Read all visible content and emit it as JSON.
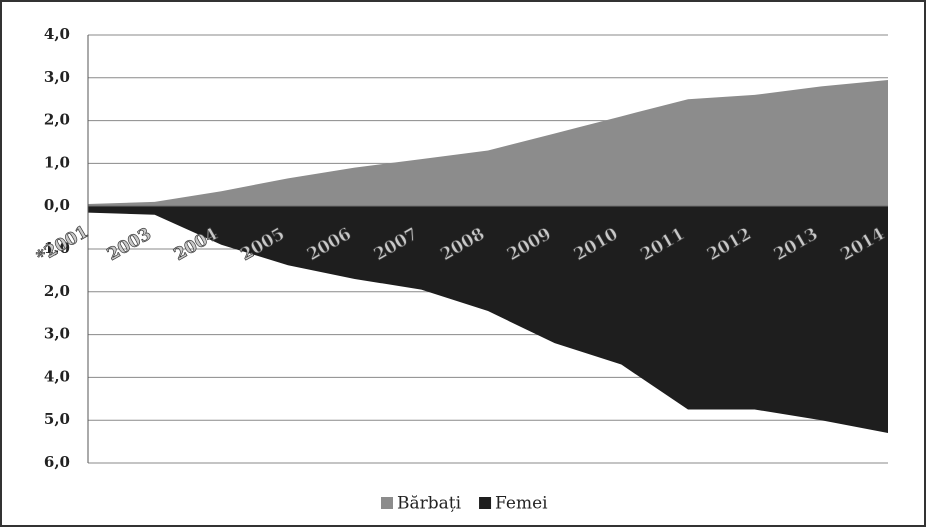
{
  "chart_data": {
    "type": "area",
    "categories": [
      "*2001",
      "2003",
      "2004",
      "2005",
      "2006",
      "2007",
      "2008",
      "2009",
      "2010",
      "2011",
      "2012",
      "2013",
      "2014"
    ],
    "series": [
      {
        "name": "Bărbați",
        "color": "#8c8c8c",
        "values": [
          0.05,
          0.1,
          0.35,
          0.65,
          0.9,
          1.1,
          1.3,
          1.7,
          2.1,
          2.5,
          2.6,
          2.8,
          2.95
        ]
      },
      {
        "name": "Femei",
        "color": "#1e1e1e",
        "values": [
          -0.15,
          -0.2,
          -0.9,
          -1.38,
          -1.7,
          -1.95,
          -2.45,
          -3.2,
          -3.7,
          -4.75,
          -4.75,
          -5.0,
          -5.3
        ]
      }
    ],
    "ylim": [
      -6,
      4
    ],
    "yticks": [
      {
        "value": 4,
        "label": "4,0"
      },
      {
        "value": 3,
        "label": "3,0"
      },
      {
        "value": 2,
        "label": "2,0"
      },
      {
        "value": 1,
        "label": "1,0"
      },
      {
        "value": 0,
        "label": "0,0"
      },
      {
        "value": -1,
        "label": "1,0"
      },
      {
        "value": -2,
        "label": "2,0"
      },
      {
        "value": -3,
        "label": "3,0"
      },
      {
        "value": -4,
        "label": "4,0"
      },
      {
        "value": -5,
        "label": "5,0"
      },
      {
        "value": -6,
        "label": "6,0"
      }
    ],
    "grid": true,
    "legend": "bottom"
  }
}
